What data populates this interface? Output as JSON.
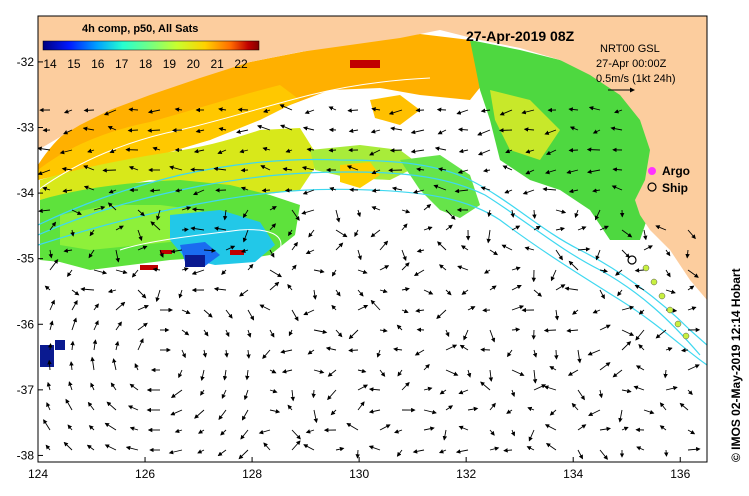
{
  "map": {
    "title": "27-Apr-2019 08Z",
    "credit": "© IMOS 02-May-2019 12:14 Hobart",
    "colorbar": {
      "title": "4h comp, p50, All Sats",
      "ticks": [
        "14",
        "15",
        "16",
        "17",
        "18",
        "19",
        "20",
        "21",
        "22"
      ],
      "colors": [
        "#00007f",
        "#0018ff",
        "#00a0ff",
        "#26ffd0",
        "#76ff80",
        "#c8ff2e",
        "#ffd200",
        "#ff6a00",
        "#c00000",
        "#7f0000"
      ]
    },
    "current_info": {
      "line1": "NRT00 GSL",
      "line2": "27-Apr 00:00Z",
      "line3": "0.5m/s (1kt 24h)"
    },
    "legend": {
      "argo": "Argo",
      "ship": "Ship"
    },
    "lon_ticks": [
      "124",
      "126",
      "128",
      "130",
      "132",
      "134",
      "136"
    ],
    "lat_ticks": [
      "-32",
      "-33",
      "-34",
      "-35",
      "-36",
      "-37",
      "-38"
    ],
    "lon_range": [
      124,
      136.5
    ],
    "lat_range": [
      -38.1,
      -31.3
    ],
    "colors": {
      "land": "#fccd9e",
      "water_no_data": "#ffffff",
      "bathy": "#3fd8f0",
      "argo": "#ff33ff"
    }
  }
}
